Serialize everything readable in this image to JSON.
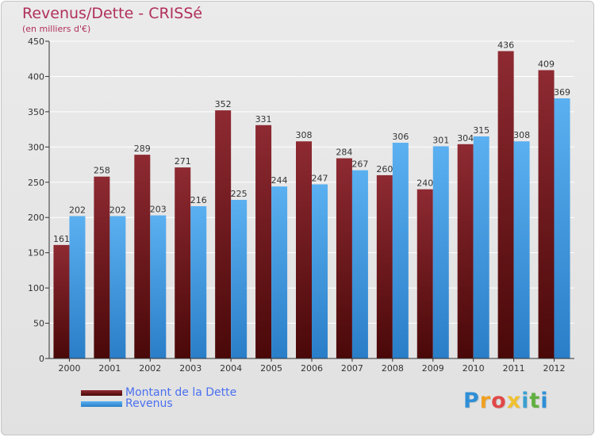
{
  "title": "Revenus/Dette - CRISSé",
  "subtitle": "(en milliers d'€)",
  "brand": {
    "letters": [
      {
        "ch": "P",
        "color": "#2e8fd6"
      },
      {
        "ch": "r",
        "color": "#f0a020"
      },
      {
        "ch": "o",
        "color": "#e04848"
      },
      {
        "ch": "x",
        "color": "#f0c030"
      },
      {
        "ch": "i",
        "color": "#3aa0d0"
      },
      {
        "ch": "t",
        "color": "#60b040"
      },
      {
        "ch": "i",
        "color": "#2e8fd6"
      }
    ]
  },
  "colors": {
    "dette": "#7a1e22",
    "revenus": "#4aa3e8",
    "axis": "#333333",
    "grid": "#ffffff"
  },
  "chart_data": {
    "type": "bar",
    "categories": [
      "2000",
      "2001",
      "2002",
      "2003",
      "2004",
      "2005",
      "2006",
      "2007",
      "2008",
      "2009",
      "2010",
      "2011",
      "2012"
    ],
    "series": [
      {
        "name": "Montant de la Dette",
        "values": [
          161,
          258,
          289,
          271,
          352,
          331,
          308,
          284,
          260,
          240,
          304,
          436,
          409
        ]
      },
      {
        "name": "Revenus",
        "values": [
          202,
          202,
          203,
          216,
          225,
          244,
          247,
          267,
          306,
          301,
          315,
          308,
          369
        ]
      }
    ],
    "ylim": [
      0,
      450
    ],
    "yticks": [
      0,
      50,
      100,
      150,
      200,
      250,
      300,
      350,
      400,
      450
    ],
    "grid": true,
    "legend": "bottom-left"
  }
}
